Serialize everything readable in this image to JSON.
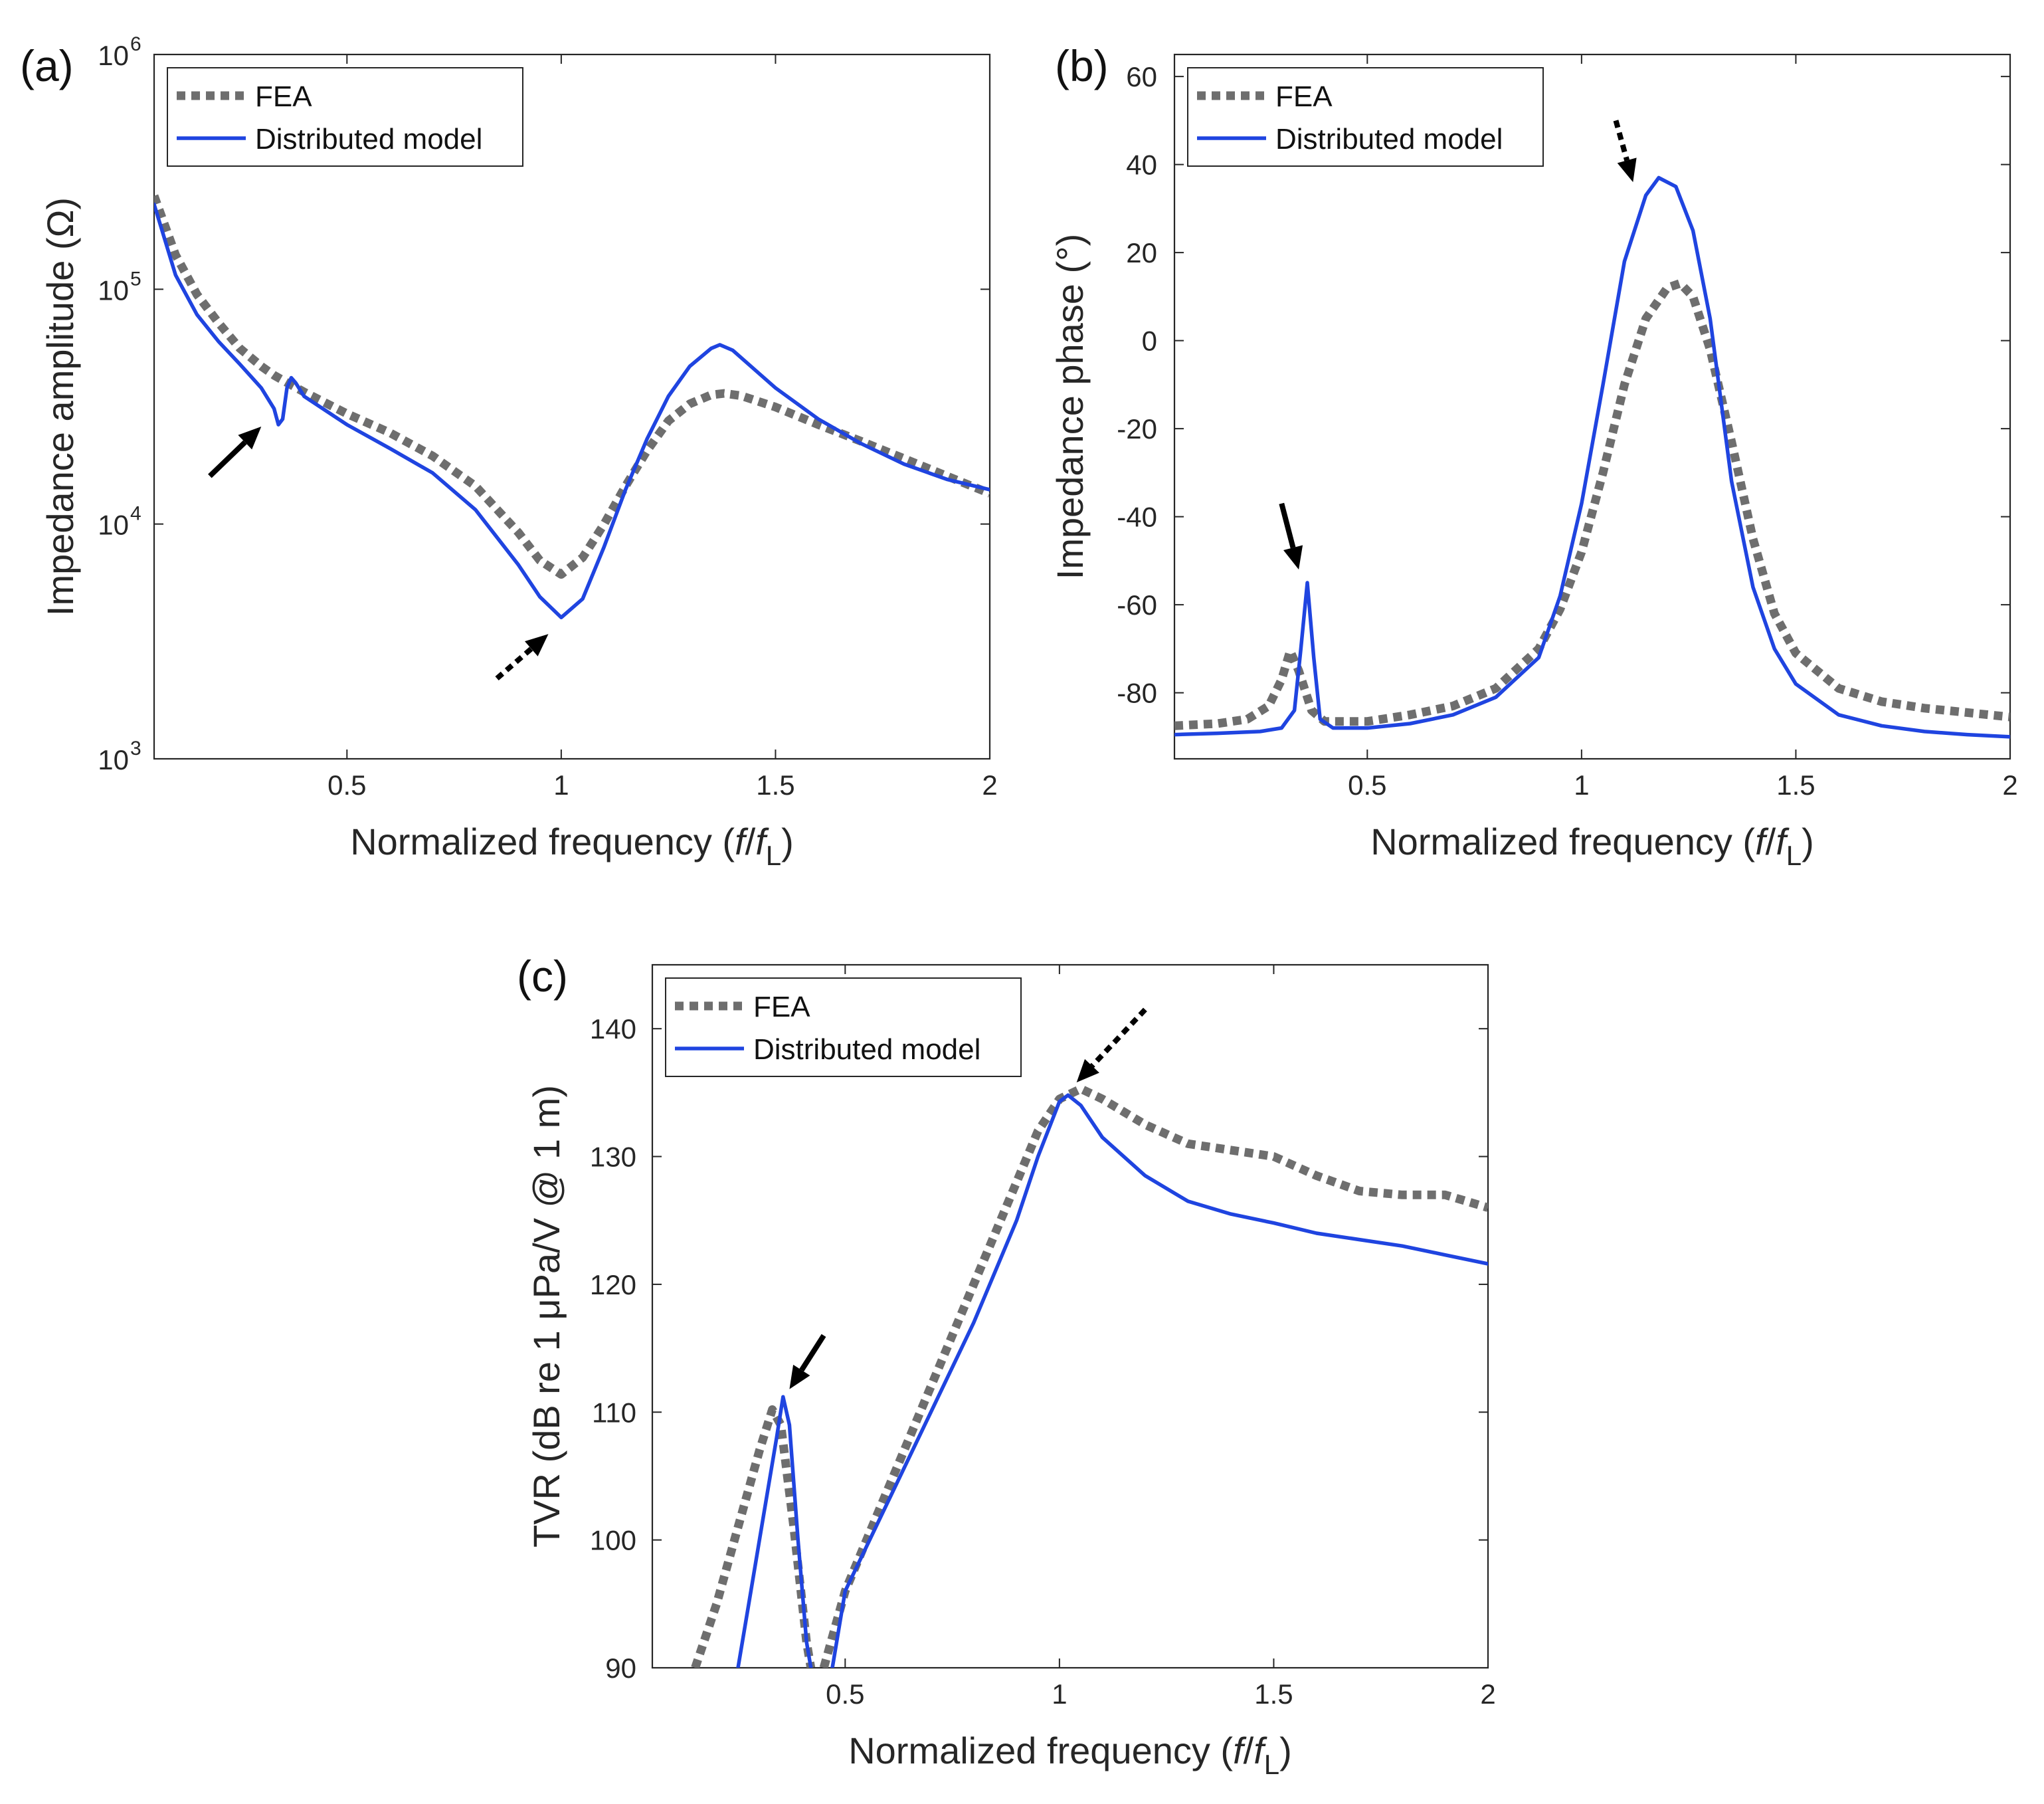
{
  "colors": {
    "fea": "#6e6e6e",
    "model": "#1f44e0",
    "axis": "#262626"
  },
  "chart_data": [
    {
      "panel": "(a)",
      "type": "line",
      "ylog": true,
      "xlabel": "Normalized frequency (f/fL)",
      "xlabel_parts": {
        "pre": "Normalized frequency (",
        "f": "f",
        "slash": "/",
        "f2": "f",
        "sub": "L",
        "post": ")"
      },
      "ylabel": "Impedance amplitude (Ω)",
      "xlim": [
        0.05,
        2.0
      ],
      "ylim": [
        1000,
        1000000
      ],
      "xticks": [
        0.5,
        1,
        1.5,
        2
      ],
      "xtick_labels": [
        "0.5",
        "1",
        "1.5",
        "2"
      ],
      "yticks": [
        1000,
        10000,
        100000,
        1000000
      ],
      "ytick_base": [
        "10",
        "10",
        "10",
        "10"
      ],
      "ytick_exp": [
        "3",
        "4",
        "5",
        "6"
      ],
      "legend": {
        "position": "top-left",
        "entries": [
          "FEA",
          "Distributed model"
        ]
      },
      "series": [
        {
          "name": "FEA",
          "style": "dotted",
          "points": [
            [
              0.05,
              250000
            ],
            [
              0.1,
              140000
            ],
            [
              0.15,
              95000
            ],
            [
              0.2,
              72000
            ],
            [
              0.25,
              56000
            ],
            [
              0.3,
              47000
            ],
            [
              0.33,
              43000
            ],
            [
              0.36,
              40000
            ],
            [
              0.4,
              36500
            ],
            [
              0.5,
              29500
            ],
            [
              0.6,
              24500
            ],
            [
              0.7,
              19500
            ],
            [
              0.8,
              14500
            ],
            [
              0.9,
              9200
            ],
            [
              0.95,
              7000
            ],
            [
              1.0,
              6100
            ],
            [
              1.05,
              7200
            ],
            [
              1.1,
              10000
            ],
            [
              1.15,
              14500
            ],
            [
              1.2,
              20500
            ],
            [
              1.25,
              27500
            ],
            [
              1.3,
              32500
            ],
            [
              1.35,
              35500
            ],
            [
              1.38,
              36000
            ],
            [
              1.42,
              35200
            ],
            [
              1.5,
              31500
            ],
            [
              1.6,
              26500
            ],
            [
              1.7,
              22500
            ],
            [
              1.8,
              19000
            ],
            [
              1.9,
              16000
            ],
            [
              2.0,
              13500
            ]
          ]
        },
        {
          "name": "Distributed model",
          "style": "solid",
          "points": [
            [
              0.05,
              230000
            ],
            [
              0.1,
              115000
            ],
            [
              0.15,
              78000
            ],
            [
              0.2,
              60000
            ],
            [
              0.25,
              48000
            ],
            [
              0.3,
              38000
            ],
            [
              0.33,
              31000
            ],
            [
              0.34,
              26500
            ],
            [
              0.35,
              28000
            ],
            [
              0.36,
              38000
            ],
            [
              0.37,
              42000
            ],
            [
              0.38,
              40000
            ],
            [
              0.4,
              35000
            ],
            [
              0.5,
              26500
            ],
            [
              0.6,
              21000
            ],
            [
              0.7,
              16500
            ],
            [
              0.8,
              11500
            ],
            [
              0.9,
              6700
            ],
            [
              0.95,
              4900
            ],
            [
              1.0,
              4000
            ],
            [
              1.05,
              4800
            ],
            [
              1.1,
              8000
            ],
            [
              1.15,
              14000
            ],
            [
              1.2,
              23000
            ],
            [
              1.25,
              35000
            ],
            [
              1.3,
              47000
            ],
            [
              1.35,
              56000
            ],
            [
              1.37,
              58000
            ],
            [
              1.4,
              55000
            ],
            [
              1.5,
              38000
            ],
            [
              1.6,
              28000
            ],
            [
              1.7,
              22000
            ],
            [
              1.8,
              18000
            ],
            [
              1.9,
              15500
            ],
            [
              2.0,
              14000
            ]
          ]
        }
      ],
      "arrows": [
        {
          "style": "solid",
          "from": [
            0.18,
            16000
          ],
          "to": [
            0.3,
            26000
          ]
        },
        {
          "style": "dotted",
          "from": [
            0.85,
            2200
          ],
          "to": [
            0.97,
            3400
          ]
        }
      ]
    },
    {
      "panel": "(b)",
      "type": "line",
      "ylog": false,
      "xlabel": "Normalized frequency (f/fL)",
      "xlabel_parts": {
        "pre": "Normalized frequency (",
        "f": "f",
        "slash": "/",
        "f2": "f",
        "sub": "L",
        "post": ")"
      },
      "ylabel": "Impedance phase (°)",
      "xlim": [
        0.05,
        2.0
      ],
      "ylim": [
        -95,
        65
      ],
      "xticks": [
        0.5,
        1,
        1.5,
        2
      ],
      "xtick_labels": [
        "0.5",
        "1",
        "1.5",
        "2"
      ],
      "yticks": [
        -80,
        -60,
        -40,
        -20,
        0,
        20,
        40,
        60
      ],
      "ytick_labels": [
        "-80",
        "-60",
        "-40",
        "-20",
        "0",
        "20",
        "40",
        "60"
      ],
      "legend": {
        "position": "top-left",
        "entries": [
          "FEA",
          "Distributed model"
        ]
      },
      "series": [
        {
          "name": "FEA",
          "style": "dotted",
          "points": [
            [
              0.05,
              -87.5
            ],
            [
              0.15,
              -87
            ],
            [
              0.22,
              -86
            ],
            [
              0.27,
              -83
            ],
            [
              0.3,
              -77
            ],
            [
              0.32,
              -70.5
            ],
            [
              0.34,
              -75
            ],
            [
              0.37,
              -84
            ],
            [
              0.4,
              -86.5
            ],
            [
              0.5,
              -86.5
            ],
            [
              0.6,
              -85
            ],
            [
              0.7,
              -83
            ],
            [
              0.8,
              -79
            ],
            [
              0.9,
              -70
            ],
            [
              0.95,
              -61
            ],
            [
              1.0,
              -48
            ],
            [
              1.05,
              -30
            ],
            [
              1.1,
              -10
            ],
            [
              1.15,
              5
            ],
            [
              1.2,
              12
            ],
            [
              1.23,
              13
            ],
            [
              1.26,
              10
            ],
            [
              1.3,
              -2
            ],
            [
              1.35,
              -23
            ],
            [
              1.4,
              -45
            ],
            [
              1.45,
              -62
            ],
            [
              1.5,
              -71
            ],
            [
              1.6,
              -79
            ],
            [
              1.7,
              -82
            ],
            [
              1.8,
              -83.5
            ],
            [
              1.9,
              -84.5
            ],
            [
              2.0,
              -85.5
            ]
          ]
        },
        {
          "name": "Distributed model",
          "style": "solid",
          "points": [
            [
              0.05,
              -89.5
            ],
            [
              0.15,
              -89.2
            ],
            [
              0.25,
              -88.8
            ],
            [
              0.3,
              -88
            ],
            [
              0.33,
              -84
            ],
            [
              0.345,
              -70
            ],
            [
              0.36,
              -55
            ],
            [
              0.375,
              -72
            ],
            [
              0.39,
              -86
            ],
            [
              0.42,
              -88
            ],
            [
              0.5,
              -88
            ],
            [
              0.6,
              -87
            ],
            [
              0.7,
              -85
            ],
            [
              0.8,
              -81
            ],
            [
              0.9,
              -72
            ],
            [
              0.95,
              -58
            ],
            [
              1.0,
              -37
            ],
            [
              1.05,
              -10
            ],
            [
              1.1,
              18
            ],
            [
              1.15,
              33
            ],
            [
              1.18,
              37
            ],
            [
              1.22,
              35
            ],
            [
              1.26,
              25
            ],
            [
              1.3,
              5
            ],
            [
              1.35,
              -32
            ],
            [
              1.4,
              -56
            ],
            [
              1.45,
              -70
            ],
            [
              1.5,
              -78
            ],
            [
              1.6,
              -85
            ],
            [
              1.7,
              -87.5
            ],
            [
              1.8,
              -88.8
            ],
            [
              1.9,
              -89.5
            ],
            [
              2.0,
              -90
            ]
          ]
        }
      ],
      "arrows": [
        {
          "style": "solid",
          "from": [
            0.3,
            -37
          ],
          "to": [
            0.34,
            -52
          ]
        },
        {
          "style": "dotted",
          "from": [
            1.08,
            50
          ],
          "to": [
            1.12,
            36
          ]
        }
      ]
    },
    {
      "panel": "(c)",
      "type": "line",
      "ylog": false,
      "xlabel": "Normalized frequency (f/fL)",
      "xlabel_parts": {
        "pre": "Normalized frequency (",
        "f": "f",
        "slash": "/",
        "f2": "f",
        "sub": "L",
        "post": ")"
      },
      "ylabel": "TVR (dB re 1 μPa/V @ 1 m)",
      "xlim": [
        0.05,
        2.0
      ],
      "ylim": [
        90,
        145
      ],
      "xticks": [
        0.5,
        1,
        1.5,
        2
      ],
      "xtick_labels": [
        "0.5",
        "1",
        "1.5",
        "2"
      ],
      "yticks": [
        90,
        100,
        110,
        120,
        130,
        140
      ],
      "ytick_labels": [
        "90",
        "100",
        "110",
        "120",
        "130",
        "140"
      ],
      "legend": {
        "position": "top-left",
        "entries": [
          "FEA",
          "Distributed model"
        ]
      },
      "series": [
        {
          "name": "FEA",
          "style": "dotted",
          "segments": [
            [
              [
                0.15,
                90
              ],
              [
                0.2,
                95
              ],
              [
                0.25,
                101
              ],
              [
                0.3,
                107
              ],
              [
                0.33,
                110.2
              ],
              [
                0.35,
                109
              ],
              [
                0.38,
                101
              ],
              [
                0.41,
                92
              ],
              [
                0.42,
                90
              ]
            ],
            [
              [
                0.45,
                90
              ],
              [
                0.5,
                96
              ],
              [
                0.6,
                104
              ],
              [
                0.7,
                112
              ],
              [
                0.8,
                120
              ],
              [
                0.9,
                128
              ],
              [
                0.95,
                132
              ],
              [
                1.0,
                134.5
              ],
              [
                1.05,
                135.3
              ],
              [
                1.1,
                134.5
              ],
              [
                1.2,
                132.5
              ],
              [
                1.3,
                131
              ],
              [
                1.4,
                130.5
              ],
              [
                1.5,
                130
              ],
              [
                1.6,
                128.5
              ],
              [
                1.7,
                127.3
              ],
              [
                1.8,
                127
              ],
              [
                1.9,
                127
              ],
              [
                2.0,
                126
              ]
            ]
          ]
        },
        {
          "name": "Distributed model",
          "style": "solid",
          "segments": [
            [
              [
                0.25,
                90
              ],
              [
                0.28,
                96
              ],
              [
                0.31,
                102
              ],
              [
                0.34,
                108
              ],
              [
                0.355,
                111.2
              ],
              [
                0.37,
                109
              ],
              [
                0.39,
                100
              ],
              [
                0.41,
                92
              ],
              [
                0.42,
                90
              ]
            ],
            [
              [
                0.47,
                90
              ],
              [
                0.5,
                96
              ],
              [
                0.6,
                103
              ],
              [
                0.7,
                110
              ],
              [
                0.8,
                117
              ],
              [
                0.9,
                125
              ],
              [
                0.95,
                130
              ],
              [
                1.0,
                134.3
              ],
              [
                1.02,
                134.8
              ],
              [
                1.05,
                134
              ],
              [
                1.1,
                131.5
              ],
              [
                1.2,
                128.5
              ],
              [
                1.3,
                126.5
              ],
              [
                1.4,
                125.5
              ],
              [
                1.5,
                124.8
              ],
              [
                1.6,
                124
              ],
              [
                1.7,
                123.5
              ],
              [
                1.8,
                123
              ],
              [
                1.9,
                122.3
              ],
              [
                2.0,
                121.6
              ]
            ]
          ]
        }
      ],
      "arrows": [
        {
          "style": "solid",
          "from": [
            0.45,
            116
          ],
          "to": [
            0.37,
            111.8
          ]
        },
        {
          "style": "dotted",
          "from": [
            1.2,
            141.5
          ],
          "to": [
            1.04,
            135.8
          ]
        }
      ]
    }
  ]
}
